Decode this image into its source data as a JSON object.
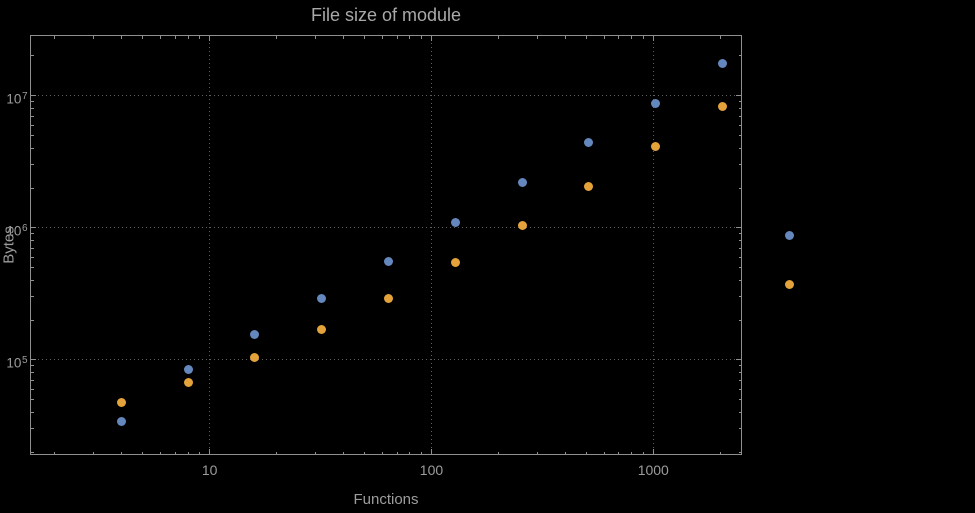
{
  "colors": {
    "background": "#000000",
    "frame": "#8f8f8f",
    "grid": "#5f5f5f",
    "tick_text": "#9c9c9c",
    "title_text": "#a9a9a9",
    "series1": "#6488bd",
    "series2": "#e3a23a"
  },
  "chart_data": {
    "type": "scatter",
    "title": "File size of module",
    "xlabel": "Functions",
    "ylabel": "Bytes",
    "x_scale": "log",
    "y_scale": "log",
    "grid": true,
    "legend": "none",
    "x": [
      4,
      8,
      16,
      32,
      64,
      128,
      256,
      512,
      1024,
      2048,
      4096
    ],
    "series": [
      {
        "name": "series-1",
        "color_key": "series1",
        "values": [
          34000,
          85000,
          155000,
          290000,
          560000,
          1100000,
          2200000,
          4400000,
          8800000,
          17500000,
          870000
        ]
      },
      {
        "name": "series-2",
        "color_key": "series2",
        "values": [
          48000,
          68000,
          105000,
          170000,
          290000,
          550000,
          1050000,
          2050000,
          4100000,
          8300000,
          370000
        ]
      }
    ],
    "x_ticks": [
      10,
      100,
      1000
    ],
    "x_tick_labels": [
      "10",
      "100",
      "1000"
    ],
    "y_ticks": [
      100000,
      1000000,
      10000000
    ],
    "y_tick_labels": [
      {
        "base": "10",
        "exp": "5"
      },
      {
        "base": "10",
        "exp": "6"
      },
      {
        "base": "10",
        "exp": "7"
      }
    ],
    "x_log_range": [
      0.19,
      3.4
    ],
    "y_log_range": [
      4.28,
      7.46
    ]
  }
}
